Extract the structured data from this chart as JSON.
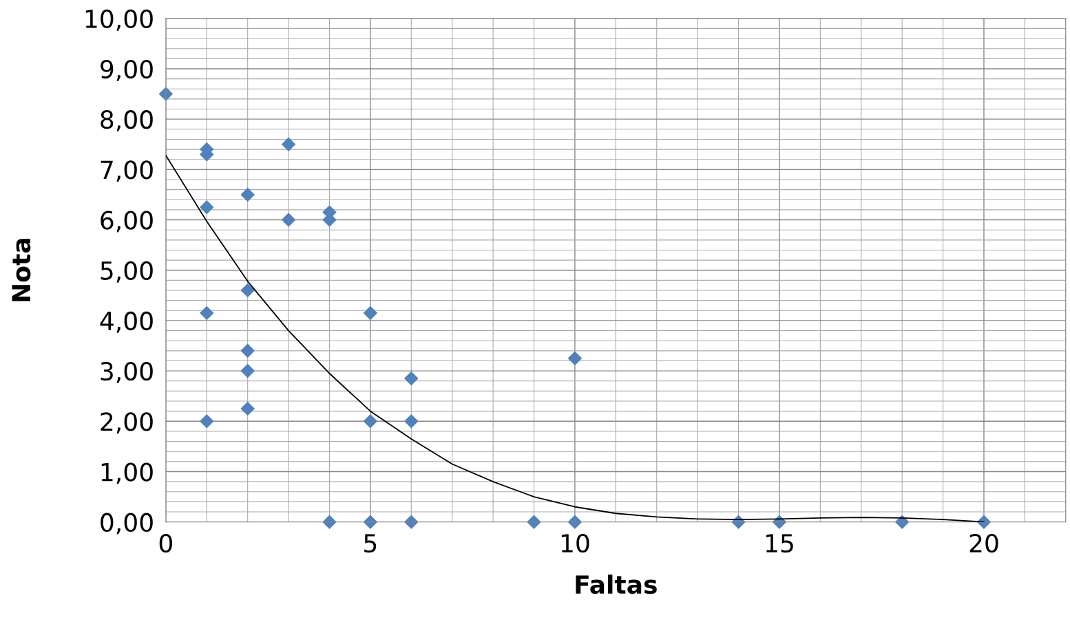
{
  "chart_data": {
    "type": "scatter",
    "xlabel": "Faltas",
    "ylabel": "Nota",
    "x": [
      0,
      1,
      1,
      1,
      1,
      1,
      2,
      2,
      2,
      2,
      2,
      3,
      3,
      4,
      4,
      4,
      5,
      5,
      5,
      6,
      6,
      6,
      9,
      10,
      10,
      14,
      15,
      18,
      20
    ],
    "series": [
      {
        "color": "#4f81bd",
        "marker": "diamond",
        "values": [
          8.5,
          7.4,
          7.3,
          6.25,
          4.15,
          2.0,
          6.5,
          4.6,
          3.4,
          3.0,
          2.25,
          7.5,
          6.0,
          6.15,
          6.0,
          0,
          4.15,
          2.0,
          0,
          2.85,
          2.0,
          0,
          0,
          3.25,
          0,
          0,
          0,
          0,
          0
        ]
      },
      {
        "type": "line",
        "color": "#000000",
        "marker": "none",
        "x": [
          0,
          1,
          2,
          3,
          4,
          5,
          6,
          7,
          8,
          9,
          10,
          11,
          12,
          13,
          14,
          15,
          16,
          17,
          18,
          19,
          20
        ],
        "values": [
          7.28,
          5.97,
          4.78,
          3.8,
          2.95,
          2.2,
          1.65,
          1.15,
          0.8,
          0.5,
          0.3,
          0.17,
          0.1,
          0.06,
          0.05,
          0.06,
          0.08,
          0.09,
          0.08,
          0.05,
          0.0
        ]
      }
    ],
    "xlim": [
      0,
      22
    ],
    "xticks": [
      0,
      5,
      10,
      15,
      20
    ],
    "ylim": [
      0,
      10
    ],
    "yticks": [
      {
        "value": 0,
        "label": "0,00"
      },
      {
        "value": 1,
        "label": "1,00"
      },
      {
        "value": 2,
        "label": "2,00"
      },
      {
        "value": 3,
        "label": "3,00"
      },
      {
        "value": 4,
        "label": "4,00"
      },
      {
        "value": 5,
        "label": "5,00"
      },
      {
        "value": 6,
        "label": "6,00"
      },
      {
        "value": 7,
        "label": "7,00"
      },
      {
        "value": 8,
        "label": "8,00"
      },
      {
        "value": 9,
        "label": "9,00"
      },
      {
        "value": 10,
        "label": "10,00"
      }
    ],
    "grid": true,
    "legend": false
  }
}
